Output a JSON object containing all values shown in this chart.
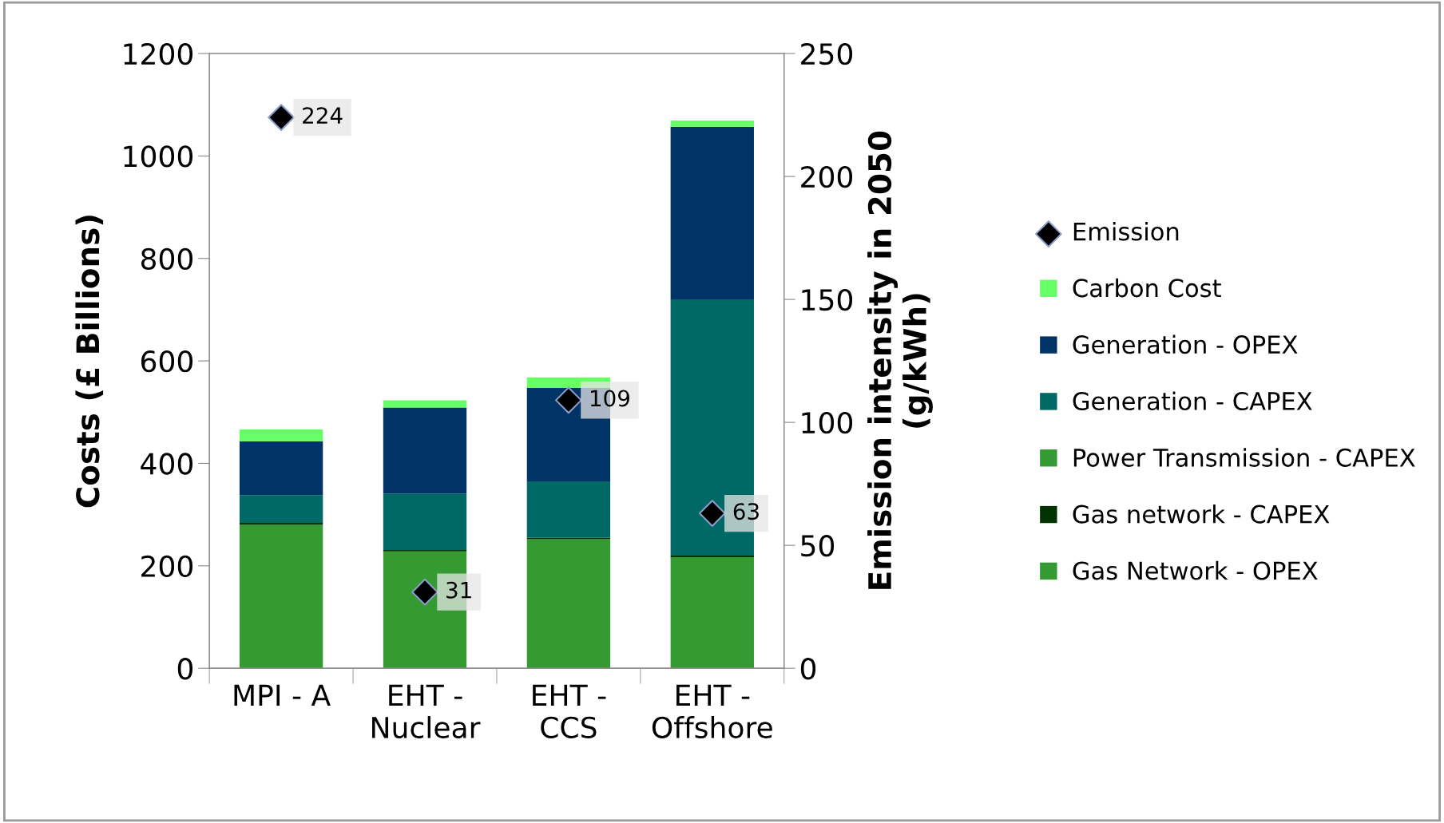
{
  "chart_data": {
    "type": "bar",
    "stacked": true,
    "categories": [
      "MPI - A",
      "EHT -\nNuclear",
      "EHT -\nCCS",
      "EHT -\nOffshore"
    ],
    "ylabel": "Costs (£ Billions)",
    "y2label": "Emission intensity in 2050\n(g/kWh)",
    "ylim": [
      0,
      1200
    ],
    "yticks": [
      0,
      200,
      400,
      600,
      800,
      1000,
      1200
    ],
    "y2lim": [
      0,
      250
    ],
    "y2ticks": [
      0,
      50,
      100,
      150,
      200,
      250
    ],
    "grid": false,
    "legend": "right",
    "series": [
      {
        "name": "Gas Network - OPEX",
        "color": "#359a32",
        "values": [
          280,
          228,
          252,
          217
        ]
      },
      {
        "name": "Gas network - CAPEX",
        "color": "#003300",
        "values": [
          4,
          3,
          3,
          3
        ]
      },
      {
        "name": "Power Transmission - CAPEX",
        "color": "#359a32",
        "values": [
          0,
          0,
          0,
          0
        ]
      },
      {
        "name": "Generation - CAPEX",
        "color": "#006865",
        "values": [
          54,
          110,
          110,
          500
        ]
      },
      {
        "name": "Generation - OPEX",
        "color": "#003366",
        "values": [
          105,
          168,
          182,
          337
        ]
      },
      {
        "name": "Carbon Cost",
        "color": "#66ff66",
        "values": [
          23,
          14,
          21,
          12
        ]
      },
      {
        "name": "Emission",
        "type": "scatter",
        "axis": "y2",
        "marker": "diamond",
        "color": "#000000",
        "data_labels": true,
        "values": [
          224,
          31,
          109,
          63
        ]
      }
    ]
  }
}
